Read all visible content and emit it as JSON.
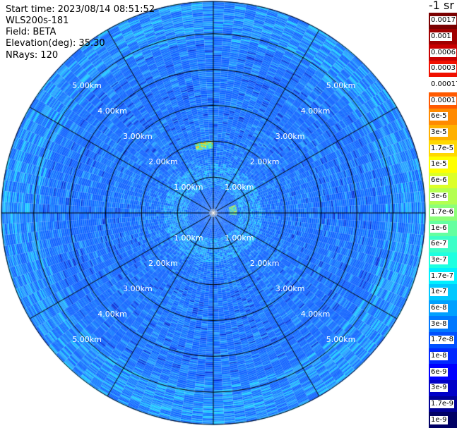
{
  "header": {
    "start_time_label": "Start time:",
    "start_time_value": "2023/08/14 08:51:52",
    "instrument": "WLS200s-181",
    "field_label": "Field:",
    "field_value": "BETA",
    "elevation_label": "Elevation(deg):",
    "elevation_value": "35.30",
    "nrays_label": "NRays:",
    "nrays_value": "120"
  },
  "colorbar": {
    "unit": "-1 sr",
    "labels": [
      "0.0017",
      "0.001",
      "0.0006",
      "0.0003",
      "0.00017",
      "0.0001",
      "6e-5",
      "3e-5",
      "1.7e-5",
      "1e-5",
      "6e-6",
      "3e-6",
      "1.7e-6",
      "1e-6",
      "6e-7",
      "3e-7",
      "1.7e-7",
      "1e-7",
      "6e-8",
      "3e-8",
      "1.7e-8",
      "1e-8",
      "6e-9",
      "3e-9",
      "1.7e-9",
      "1e-9"
    ],
    "colors": [
      "#7a0000",
      "#a00000",
      "#c80000",
      "#f01000",
      "#ffffff",
      "#ff5a00",
      "#ff8a00",
      "#ffb000",
      "#ffd800",
      "#ffff00",
      "#dcff28",
      "#b4ff50",
      "#8cff78",
      "#64ffa0",
      "#3cffc8",
      "#1effe0",
      "#00f0ff",
      "#00c8ff",
      "#00a0ff",
      "#0078ff",
      "#0050ff",
      "#0028ff",
      "#0000ff",
      "#0000c8",
      "#000096",
      "#000064"
    ]
  },
  "chart_data": {
    "type": "ppi_polar",
    "field": "BETA",
    "nrays": 120,
    "elevation_deg": 35.3,
    "range_rings_km": [
      1.0,
      2.0,
      3.0,
      4.0,
      5.0
    ],
    "ring_labels": [
      "1.00km",
      "2.00km",
      "3.00km",
      "4.00km",
      "5.00km"
    ],
    "ring_label_quadrants": [
      "NW",
      "NE",
      "SW",
      "SE"
    ],
    "spokes_every_deg": 30,
    "max_range_km": 5.9,
    "colorscale": "log, 1e-9 to 0.0017 sr-1",
    "background_level": "~3e-8 to 1e-7",
    "features": [
      {
        "name": "enhanced ring",
        "range_km": [
          0.7,
          1.3
        ],
        "level": "~1.7e-7 to 1e-6"
      },
      {
        "name": "strong echo NNW arc",
        "range_km": [
          1.8,
          2.0
        ],
        "azimuth_deg": [
          345,
          0
        ],
        "level": "~3e-6 to 1e-5"
      },
      {
        "name": "strong echo E arc",
        "range_km": [
          0.45,
          0.65
        ],
        "azimuth_deg": [
          70,
          95
        ],
        "level": "~3e-6 to 1e-5"
      }
    ]
  }
}
